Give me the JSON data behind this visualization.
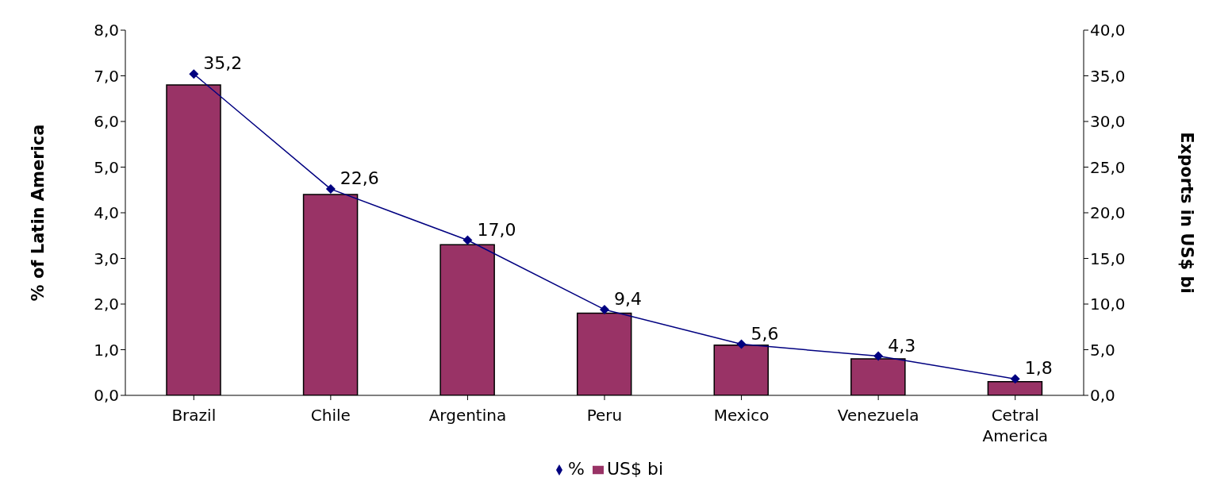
{
  "chart_data": {
    "type": "bar",
    "ylabel": "% of Latin America",
    "y2label": "Exports in US$ bi",
    "categories": [
      "Brazil",
      "Chile",
      "Argentina",
      "Peru",
      "Mexico",
      "Venezuela",
      "Cetral America"
    ],
    "series": [
      {
        "name": "US$ bi",
        "color": "#993366",
        "values": [
          6.8,
          4.4,
          3.3,
          1.8,
          1.1,
          0.8,
          0.3
        ]
      },
      {
        "name": "%",
        "type": "line",
        "axis": "y2",
        "color": "#000080",
        "marker": "diamond",
        "data_labels": true,
        "value_labels": [
          "35,2",
          "22,6",
          "17,0",
          "9,4",
          "5,6",
          "4,3",
          "1,8"
        ],
        "values": [
          35.2,
          22.6,
          17.0,
          9.4,
          5.6,
          4.3,
          1.8
        ]
      }
    ],
    "ylim": [
      0,
      8
    ],
    "yticks": [
      {
        "value": 0,
        "label": "0,0"
      },
      {
        "value": 1,
        "label": "1,0"
      },
      {
        "value": 2,
        "label": "2,0"
      },
      {
        "value": 3,
        "label": "3,0"
      },
      {
        "value": 4,
        "label": "4,0"
      },
      {
        "value": 5,
        "label": "5,0"
      },
      {
        "value": 6,
        "label": "6,0"
      },
      {
        "value": 7,
        "label": "7,0"
      },
      {
        "value": 8,
        "label": "8,0"
      }
    ],
    "y2lim": [
      0,
      40
    ],
    "y2ticks": [
      {
        "value": 0,
        "label": "0,0"
      },
      {
        "value": 5,
        "label": "5,0"
      },
      {
        "value": 10,
        "label": "10,0"
      },
      {
        "value": 15,
        "label": "15,0"
      },
      {
        "value": 20,
        "label": "20,0"
      },
      {
        "value": 25,
        "label": "25,0"
      },
      {
        "value": 30,
        "label": "30,0"
      },
      {
        "value": 35,
        "label": "35,0"
      },
      {
        "value": 40,
        "label": "40,0"
      }
    ],
    "grid": false,
    "legend": "bottom"
  }
}
